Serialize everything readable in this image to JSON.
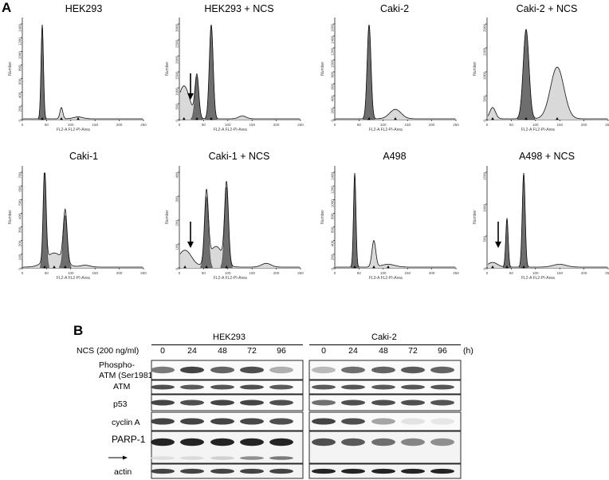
{
  "panel_a": {
    "letter": "A",
    "x_axis_label": "FL2-A FL2-PI-Area",
    "y_axis_label": "Number",
    "x_ticks": [
      "0",
      "50",
      "100",
      "150",
      "200",
      "250"
    ],
    "histograms": [
      {
        "title": "HEK293",
        "x_axis_label": "FL2-A FL2-PI-Area",
        "y_ticks": [
          "0",
          "200",
          "400",
          "600",
          "800",
          "1000",
          "1200",
          "1400"
        ],
        "arrow": false
      },
      {
        "title": "HEK293 + NCS",
        "x_axis_label": "FL2-A FL2-PI-Area",
        "y_ticks": [
          "0",
          "500",
          "1000",
          "1500",
          "2000",
          "2500",
          "3000"
        ],
        "arrow": true
      },
      {
        "title": "Caki-2",
        "x_axis_label": "FL2-A FL2-PI-Area",
        "y_ticks": [
          "0",
          "200",
          "400",
          "600",
          "800",
          "1000",
          "1200",
          "1400",
          "1600"
        ],
        "arrow": false
      },
      {
        "title": "Caki-2 + NCS",
        "x_axis_label": "FL2-A FL2-PI-Area",
        "y_ticks": [
          "0",
          "500",
          "1000",
          "1500",
          "2000"
        ],
        "arrow": false
      },
      {
        "title": "Caki-1",
        "x_axis_label": "FL2-A FL2-PI-Area",
        "y_ticks": [
          "0",
          "100",
          "200",
          "300",
          "400",
          "500",
          "600",
          "700"
        ],
        "arrow": false
      },
      {
        "title": "Caki-1 + NCS",
        "x_axis_label": "FL2-A FL2-PI-Area",
        "y_ticks": [
          "0",
          "100",
          "200",
          "300",
          "400"
        ],
        "arrow": true
      },
      {
        "title": "A498",
        "x_axis_label": "FL3-A FL2-PI-Area",
        "y_ticks": [
          "0",
          "200",
          "400",
          "600",
          "800",
          "1000",
          "1200",
          "1400"
        ],
        "arrow": false
      },
      {
        "title": "A498 + NCS",
        "x_axis_label": "FL2-A FL2-PI-Area",
        "y_ticks": [
          "0",
          "500",
          "1000",
          "1500"
        ],
        "arrow": true
      }
    ]
  },
  "panel_b": {
    "letter": "B",
    "group_left": "HEK293",
    "group_right": "Caki-2",
    "treatment_label": "NCS (200 ng/ml)",
    "time_unit": "(h)",
    "time_points": [
      "0",
      "24",
      "48",
      "72",
      "96"
    ],
    "rows": [
      {
        "label": "Phospho-ATM (Ser1981)",
        "label_line1": "Phospho-",
        "label_line2": "ATM (Ser1981)"
      },
      {
        "label": "ATM"
      },
      {
        "label": "p53"
      },
      {
        "label": "cyclin A"
      },
      {
        "label": "PARP-1"
      },
      {
        "label": "",
        "cleaved_arrow": true
      },
      {
        "label": "actin"
      }
    ]
  }
}
